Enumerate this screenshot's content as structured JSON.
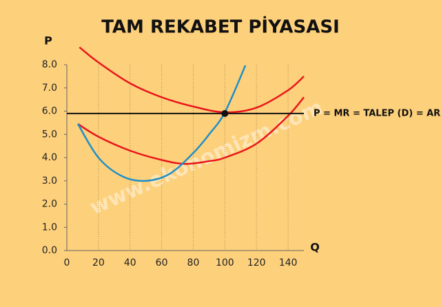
{
  "chart_data": {
    "type": "line",
    "title": "TAM REKABET PİYASASI",
    "y_label": "P",
    "x_label": "Q",
    "watermark": "www.ekonomizm.com",
    "xlim": [
      0,
      150
    ],
    "ylim": [
      0,
      8
    ],
    "xticks": [
      0,
      20,
      40,
      60,
      80,
      100,
      120,
      140
    ],
    "yticks": [
      {
        "value": 0,
        "label": "0.0"
      },
      {
        "value": 1,
        "label": "1.0"
      },
      {
        "value": 2,
        "label": "2.0"
      },
      {
        "value": 3,
        "label": "3.0"
      },
      {
        "value": 4,
        "label": "4.0"
      },
      {
        "value": 5,
        "label": "5.0"
      },
      {
        "value": 6,
        "label": "6.0"
      },
      {
        "value": 7,
        "label": "7.0"
      },
      {
        "value": 8,
        "label": "8.0"
      }
    ],
    "grid": true,
    "series": [
      {
        "color": "#e8141b",
        "x": [
          8,
          20,
          40,
          60,
          80,
          100,
          120,
          140,
          150
        ],
        "values": [
          8.75,
          8.1,
          7.2,
          6.6,
          6.2,
          5.95,
          6.15,
          6.9,
          7.5
        ]
      },
      {
        "color": "#e8141b",
        "x": [
          7,
          20,
          40,
          60,
          75,
          90,
          100,
          120,
          140,
          150
        ],
        "values": [
          5.45,
          4.9,
          4.3,
          3.9,
          3.73,
          3.85,
          4.0,
          4.6,
          5.8,
          6.6
        ]
      },
      {
        "color": "#1e8fc8",
        "x": [
          7,
          20,
          35,
          50,
          65,
          80,
          90,
          100,
          113
        ],
        "values": [
          5.45,
          4.0,
          3.2,
          3.0,
          3.3,
          4.2,
          5.0,
          5.95,
          7.97
        ]
      },
      {
        "color": "#111111",
        "x": [
          0,
          150
        ],
        "values": [
          5.9,
          5.9
        ]
      }
    ],
    "line_label": "P = MR = TALEP  (D) = AR",
    "point": {
      "x": 100,
      "y": 5.9
    }
  }
}
